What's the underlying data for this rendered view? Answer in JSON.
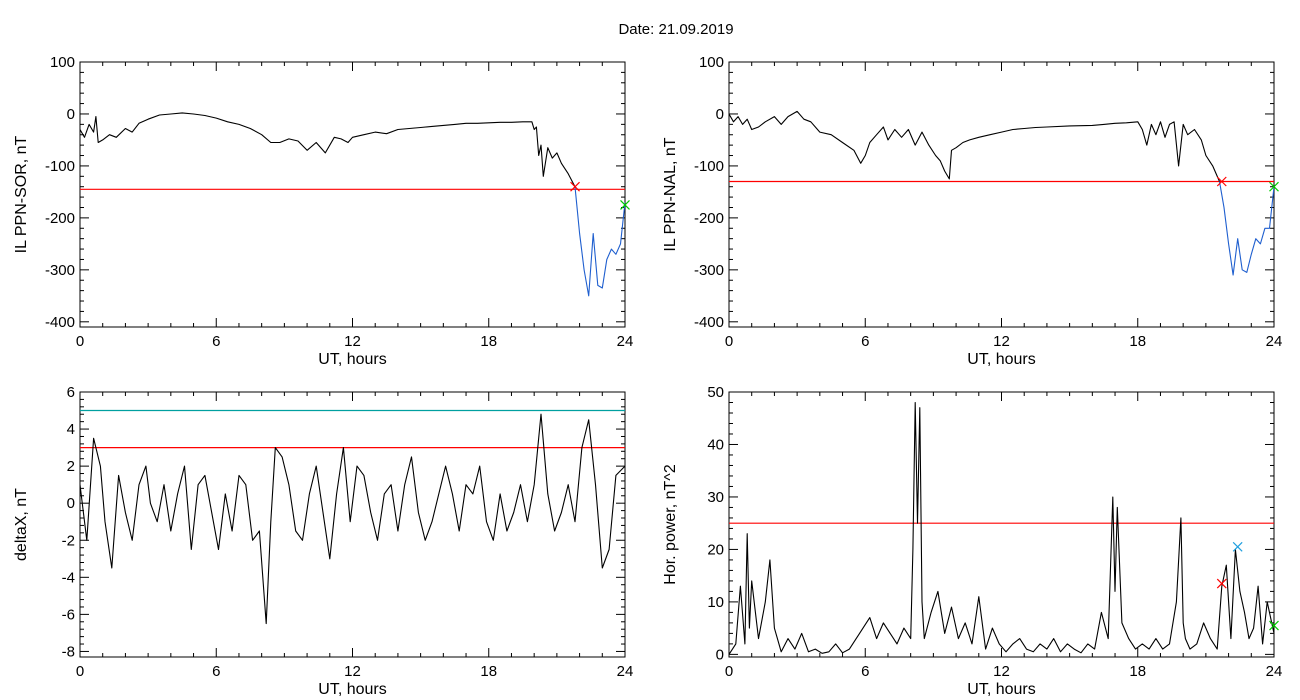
{
  "title": "Date:  21.09.2019",
  "chart_data": [
    {
      "type": "line",
      "xlabel": "UT, hours",
      "ylabel": "IL PPN-SOR, nT",
      "xlim": [
        0,
        24
      ],
      "ylim": [
        -410,
        100
      ],
      "x_ticks": [
        0,
        6,
        12,
        18,
        24
      ],
      "y_ticks": [
        100,
        0,
        -100,
        -200,
        -300,
        -400
      ],
      "series": [
        {
          "color": "#000000",
          "x": [
            0,
            0.2,
            0.4,
            0.6,
            0.7,
            0.8,
            1.0,
            1.3,
            1.6,
            2.0,
            2.3,
            2.6,
            3.0,
            3.5,
            4.0,
            4.5,
            5.0,
            5.5,
            6.0,
            6.5,
            7.0,
            7.5,
            8.0,
            8.4,
            8.8,
            9.2,
            9.6,
            10.0,
            10.4,
            10.8,
            11.2,
            11.5,
            11.8,
            12.0,
            12.5,
            13.0,
            13.5,
            14.0,
            14.5,
            15.0,
            15.5,
            16.0,
            16.5,
            17.0,
            17.5,
            18.0,
            18.5,
            19.0,
            19.5,
            19.9,
            20.0,
            20.1,
            20.2,
            20.3,
            20.4,
            20.6,
            20.8,
            21.0,
            21.2,
            21.5,
            21.8
          ],
          "y": [
            -30,
            -45,
            -20,
            -35,
            -5,
            -55,
            -50,
            -40,
            -45,
            -28,
            -35,
            -18,
            -10,
            -2,
            0,
            2,
            0,
            -3,
            -8,
            -15,
            -20,
            -28,
            -40,
            -55,
            -55,
            -48,
            -52,
            -70,
            -55,
            -75,
            -45,
            -48,
            -55,
            -45,
            -40,
            -35,
            -38,
            -30,
            -28,
            -26,
            -24,
            -22,
            -20,
            -18,
            -18,
            -17,
            -16,
            -16,
            -15,
            -15,
            -30,
            -25,
            -80,
            -60,
            -120,
            -65,
            -85,
            -75,
            -95,
            -115,
            -140
          ]
        },
        {
          "color": "#1f5fcf",
          "x": [
            21.8,
            22.0,
            22.2,
            22.4,
            22.6,
            22.8,
            23.0,
            23.2,
            23.4,
            23.6,
            23.8,
            24.0
          ],
          "y": [
            -140,
            -230,
            -300,
            -350,
            -230,
            -330,
            -335,
            -280,
            -260,
            -270,
            -250,
            -170
          ]
        }
      ],
      "hlines": [
        {
          "y": -145,
          "color": "#ff0000"
        }
      ],
      "markers": [
        {
          "x": 21.8,
          "y": -140,
          "color": "#ff0000",
          "symbol": "x"
        },
        {
          "x": 24.0,
          "y": -175,
          "color": "#00cc00",
          "symbol": "x"
        }
      ]
    },
    {
      "type": "line",
      "xlabel": "UT, hours",
      "ylabel": "IL PPN-NAL, nT",
      "xlim": [
        0,
        24
      ],
      "ylim": [
        -410,
        100
      ],
      "x_ticks": [
        0,
        6,
        12,
        18,
        24
      ],
      "y_ticks": [
        100,
        0,
        -100,
        -200,
        -300,
        -400
      ],
      "series": [
        {
          "color": "#000000",
          "x": [
            0,
            0.2,
            0.4,
            0.6,
            0.8,
            1.0,
            1.3,
            1.6,
            2.0,
            2.3,
            2.6,
            3.0,
            3.3,
            3.6,
            4.0,
            4.5,
            5.0,
            5.5,
            5.8,
            6.0,
            6.2,
            6.5,
            6.8,
            7.0,
            7.3,
            7.6,
            7.9,
            8.2,
            8.5,
            8.8,
            9.1,
            9.3,
            9.5,
            9.7,
            9.8,
            10.0,
            10.3,
            10.6,
            11.0,
            11.5,
            12.0,
            12.5,
            13.0,
            13.5,
            14.0,
            15.0,
            16.0,
            16.5,
            17.0,
            17.5,
            18.0,
            18.2,
            18.4,
            18.6,
            18.8,
            19.0,
            19.2,
            19.4,
            19.6,
            19.8,
            20.0,
            20.2,
            20.5,
            20.8,
            21.0,
            21.3,
            21.6
          ],
          "y": [
            0,
            -15,
            -5,
            -20,
            -10,
            -30,
            -25,
            -15,
            -5,
            -20,
            -5,
            5,
            -10,
            -15,
            -35,
            -40,
            -55,
            -70,
            -95,
            -80,
            -55,
            -40,
            -25,
            -50,
            -30,
            -45,
            -30,
            -60,
            -35,
            -60,
            -80,
            -90,
            -110,
            -125,
            -70,
            -65,
            -55,
            -50,
            -45,
            -40,
            -35,
            -30,
            -28,
            -26,
            -25,
            -23,
            -22,
            -20,
            -18,
            -17,
            -15,
            -30,
            -60,
            -20,
            -40,
            -15,
            -45,
            -20,
            -15,
            -100,
            -20,
            -40,
            -30,
            -50,
            -80,
            -100,
            -130
          ]
        },
        {
          "color": "#1f5fcf",
          "x": [
            21.6,
            21.8,
            22.0,
            22.2,
            22.4,
            22.6,
            22.8,
            23.0,
            23.2,
            23.4,
            23.6,
            23.8,
            24.0
          ],
          "y": [
            -130,
            -180,
            -250,
            -310,
            -240,
            -300,
            -305,
            -270,
            -240,
            -250,
            -220,
            -220,
            -140
          ]
        }
      ],
      "hlines": [
        {
          "y": -130,
          "color": "#ff0000"
        }
      ],
      "markers": [
        {
          "x": 21.7,
          "y": -130,
          "color": "#ff0000",
          "symbol": "x"
        },
        {
          "x": 24.0,
          "y": -140,
          "color": "#00cc00",
          "symbol": "x"
        }
      ]
    },
    {
      "type": "line",
      "xlabel": "UT, hours",
      "ylabel": "deltaX, nT",
      "xlim": [
        0,
        24
      ],
      "ylim": [
        -8.3,
        6
      ],
      "x_ticks": [
        0,
        6,
        12,
        18,
        24
      ],
      "y_ticks": [
        6,
        4,
        2,
        0,
        -2,
        -4,
        -6,
        -8
      ],
      "series": [
        {
          "color": "#000000",
          "x": [
            0,
            0.3,
            0.6,
            0.9,
            1.1,
            1.4,
            1.7,
            2.0,
            2.3,
            2.6,
            2.9,
            3.1,
            3.4,
            3.7,
            4.0,
            4.3,
            4.6,
            4.9,
            5.2,
            5.5,
            5.8,
            6.1,
            6.4,
            6.7,
            7.0,
            7.3,
            7.6,
            7.9,
            8.2,
            8.4,
            8.6,
            8.9,
            9.2,
            9.5,
            9.8,
            10.1,
            10.4,
            10.7,
            11.0,
            11.3,
            11.6,
            11.9,
            12.2,
            12.5,
            12.8,
            13.1,
            13.4,
            13.7,
            14.0,
            14.3,
            14.6,
            14.9,
            15.2,
            15.5,
            15.8,
            16.1,
            16.4,
            16.7,
            17.0,
            17.3,
            17.6,
            17.9,
            18.2,
            18.5,
            18.8,
            19.1,
            19.4,
            19.7,
            20.0,
            20.3,
            20.6,
            20.9,
            21.2,
            21.5,
            21.8,
            22.1,
            22.4,
            22.7,
            23.0,
            23.3,
            23.6,
            24.0
          ],
          "y": [
            1,
            -2,
            3.5,
            2,
            -1,
            -3.5,
            1.5,
            -0.5,
            -2,
            1,
            2,
            0,
            -1,
            1,
            -1.5,
            0.5,
            2,
            -2.5,
            1,
            1.5,
            -0.5,
            -2.5,
            0.5,
            -1.5,
            1.5,
            1,
            -2,
            -1.5,
            -6.5,
            -1,
            3,
            2.5,
            1,
            -1.5,
            -2,
            0.5,
            2,
            -0.5,
            -3,
            0.5,
            3,
            -1,
            2,
            1.5,
            -0.5,
            -2,
            0.5,
            1,
            -1.5,
            1,
            2.5,
            -0.5,
            -2,
            -1,
            0.5,
            2,
            0.5,
            -1.5,
            1,
            0.5,
            2,
            -1,
            -2,
            0.5,
            -1.5,
            -0.5,
            1,
            -1,
            1,
            4.8,
            0.5,
            -1.5,
            -0.5,
            1,
            -1,
            3,
            4.5,
            1,
            -3.5,
            -2.5,
            1.5,
            2
          ]
        }
      ],
      "hlines": [
        {
          "y": 3,
          "color": "#ff0000"
        },
        {
          "y": 5,
          "color": "#00a0a0"
        }
      ],
      "markers": []
    },
    {
      "type": "line",
      "xlabel": "UT, hours",
      "ylabel": "Hor. power, nT^2",
      "xlim": [
        0,
        24
      ],
      "ylim": [
        -0.5,
        50
      ],
      "x_ticks": [
        0,
        6,
        12,
        18,
        24
      ],
      "y_ticks": [
        50,
        40,
        30,
        20,
        10,
        0
      ],
      "series": [
        {
          "color": "#000000",
          "x": [
            0,
            0.3,
            0.5,
            0.7,
            0.8,
            0.9,
            1.0,
            1.3,
            1.6,
            1.8,
            2.0,
            2.3,
            2.6,
            2.9,
            3.2,
            3.5,
            3.8,
            4.1,
            4.4,
            4.7,
            5.0,
            5.3,
            5.6,
            5.9,
            6.2,
            6.5,
            6.8,
            7.1,
            7.4,
            7.7,
            8.0,
            8.1,
            8.2,
            8.3,
            8.4,
            8.5,
            8.6,
            8.9,
            9.2,
            9.5,
            9.8,
            10.1,
            10.4,
            10.7,
            11.0,
            11.3,
            11.6,
            11.9,
            12.2,
            12.5,
            12.8,
            13.1,
            13.4,
            13.7,
            14.0,
            14.3,
            14.6,
            14.9,
            15.2,
            15.5,
            15.8,
            16.1,
            16.4,
            16.7,
            16.9,
            17.0,
            17.1,
            17.3,
            17.6,
            17.9,
            18.2,
            18.5,
            18.8,
            19.1,
            19.4,
            19.7,
            19.9,
            20.0,
            20.1,
            20.3,
            20.6,
            20.9,
            21.2,
            21.5,
            21.7,
            21.9,
            22.1,
            22.3,
            22.5,
            22.7,
            22.9,
            23.1,
            23.3,
            23.5,
            23.7,
            24.0
          ],
          "y": [
            0,
            2,
            13,
            2,
            23,
            5,
            14,
            3,
            10,
            18,
            5,
            0.5,
            3,
            1,
            4,
            0.5,
            1,
            0.2,
            0.5,
            2,
            0.3,
            1,
            3,
            5,
            7,
            3,
            6,
            4,
            2,
            5,
            3,
            20,
            48,
            25,
            47,
            10,
            3,
            8,
            12,
            4,
            9,
            3,
            6,
            2,
            11,
            1,
            5,
            2,
            0.5,
            2,
            3,
            1,
            0.5,
            2,
            1,
            3,
            0.5,
            2,
            1,
            0.3,
            2,
            1,
            8,
            3,
            30,
            12,
            28,
            6,
            3,
            1,
            2,
            1,
            3,
            1,
            2,
            10,
            26,
            6,
            3,
            1,
            2,
            6,
            3,
            1,
            13,
            17,
            3,
            20,
            12,
            8,
            3,
            5,
            13,
            2,
            10,
            4
          ]
        }
      ],
      "hlines": [
        {
          "y": 25,
          "color": "#ff0000"
        }
      ],
      "markers": [
        {
          "x": 21.7,
          "y": 13.5,
          "color": "#ff0000",
          "symbol": "x"
        },
        {
          "x": 22.4,
          "y": 20.5,
          "color": "#1f9fdf",
          "symbol": "x"
        },
        {
          "x": 24.0,
          "y": 5.5,
          "color": "#00cc00",
          "symbol": "x"
        }
      ]
    }
  ]
}
